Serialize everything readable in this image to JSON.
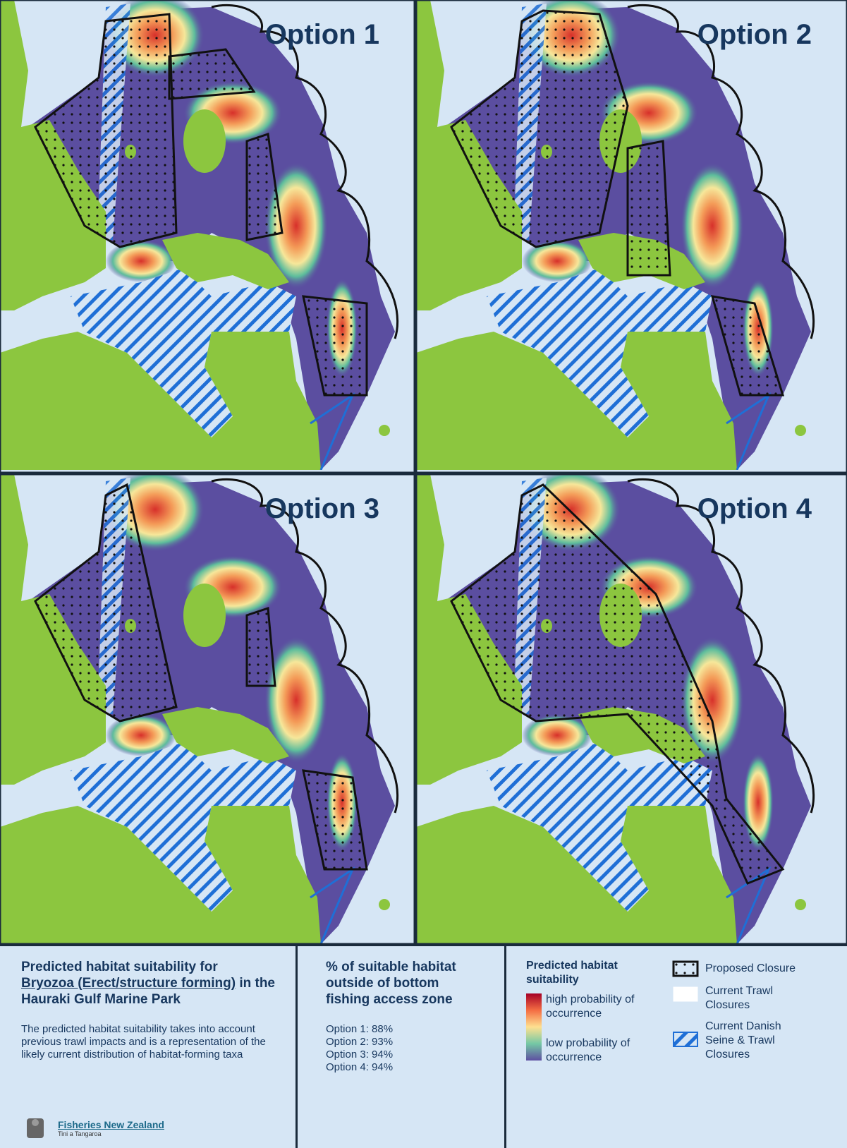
{
  "panels": [
    {
      "title": "Option 1"
    },
    {
      "title": "Option 2"
    },
    {
      "title": "Option 3"
    },
    {
      "title": "Option 4"
    }
  ],
  "legend_panel": {
    "title_prefix": "Predicted habitat suitability for",
    "title_species": "Bryozoa (Erect/structure forming)",
    "title_suffix": "in the Hauraki Gulf Marine Park",
    "description": "The predicted habitat suitability takes into account previous trawl impacts and is a representation of the likely current distribution of habitat-forming taxa",
    "logo_name": "Fisheries New Zealand",
    "logo_sub": "Tini a Tangaroa",
    "stats_heading": "% of suitable habitat outside of bottom fishing access zone",
    "stats": [
      "Option 1: 88%",
      "Option 2: 93%",
      "Option 3: 94%",
      "Option 4: 94%"
    ],
    "scale_heading": "Predicted habitat suitability",
    "scale_high": "high probability of occurrence",
    "scale_low": "low probability of occurrence",
    "key": [
      "Proposed Closure",
      "Current Trawl Closures",
      "Current Danish Seine & Trawl Closures"
    ]
  }
}
